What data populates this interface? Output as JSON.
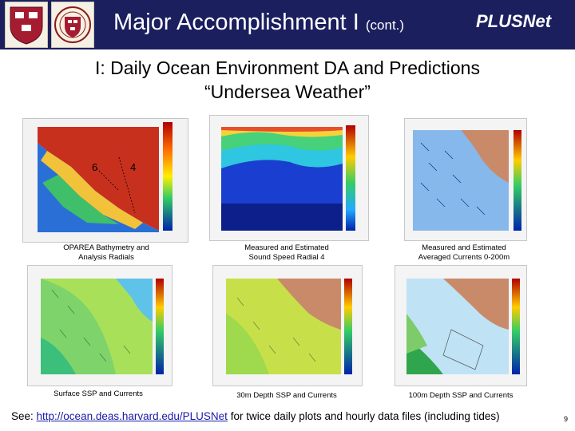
{
  "header": {
    "title": "Major Accomplishment I",
    "title_suffix": "(cont.)",
    "brand": "PLUSNet",
    "colors": {
      "banner": "#1b1f5e",
      "text": "#ffffff"
    }
  },
  "subtitle": {
    "line1": "I:  Daily Ocean Environment DA and Predictions",
    "line2": "“Undersea Weather”"
  },
  "figures": {
    "top": [
      {
        "caption": [
          "OPAREA Bathymetry and",
          "Analysis Radials"
        ],
        "labels": [
          "6",
          "4"
        ]
      },
      {
        "caption": [
          "Measured and Estimated",
          "Sound Speed Radial 4"
        ]
      },
      {
        "caption": [
          "Measured and Estimated",
          "Averaged Currents 0-200m"
        ]
      }
    ],
    "bottom": [
      {
        "caption": "Surface SSP and Currents"
      },
      {
        "caption": "30m Depth SSP and Currents"
      },
      {
        "caption": "100m Depth SSP and Currents"
      }
    ]
  },
  "footer": {
    "prefix": "See: ",
    "link": "http://ocean.deas.harvard.edu/PLUSNet",
    "suffix": " for twice daily plots and hourly data files (including tides)",
    "page": "9"
  }
}
